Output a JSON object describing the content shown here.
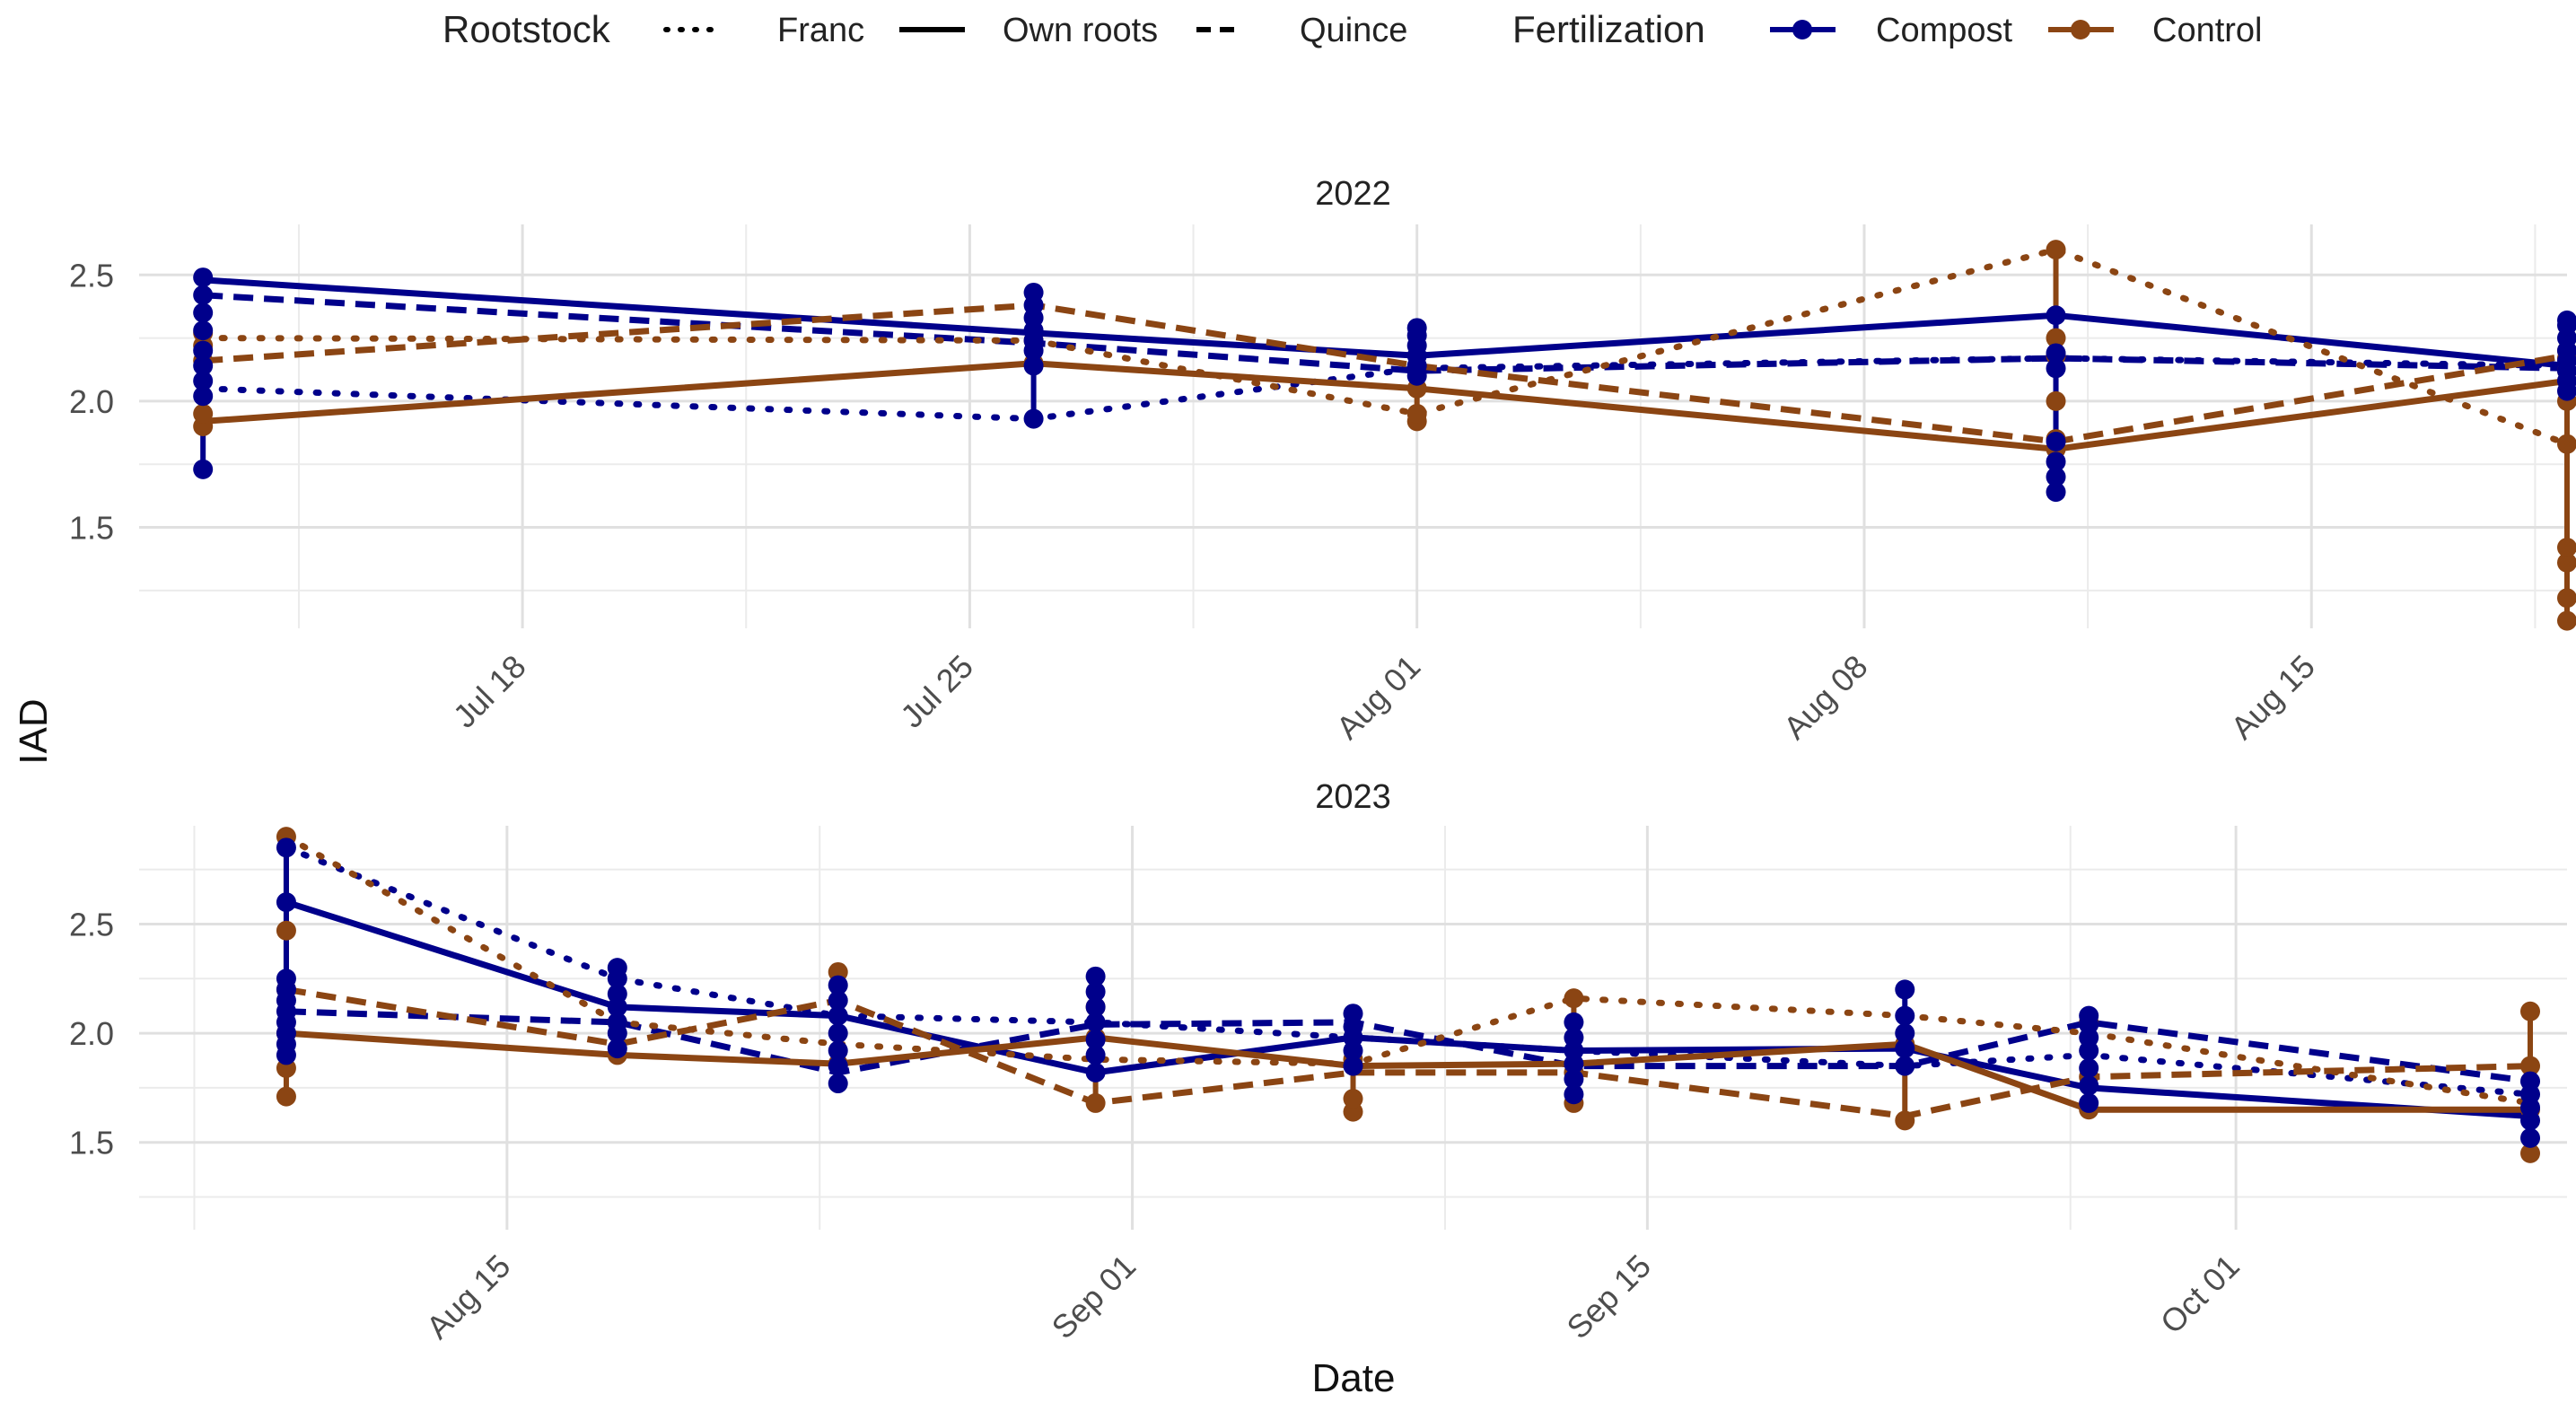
{
  "legend": {
    "rootstock_title": "Rootstock",
    "rootstock_items": [
      {
        "key": "franc",
        "label": "Franc",
        "dash": "dotted"
      },
      {
        "key": "own",
        "label": "Own roots",
        "dash": "solid"
      },
      {
        "key": "quince",
        "label": "Quince",
        "dash": "dashed"
      }
    ],
    "fertilization_title": "Fertilization",
    "fertilization_items": [
      {
        "key": "compost",
        "label": "Compost",
        "color": "#00008B"
      },
      {
        "key": "control",
        "label": "Control",
        "color": "#8B4513"
      }
    ]
  },
  "axis": {
    "xlabel": "Date",
    "ylabel": "IAD"
  },
  "chart_data": [
    {
      "type": "line",
      "title": "2022",
      "x_domain": [
        "2022-07-12",
        "2022-08-19"
      ],
      "ylim": [
        1.1,
        2.7
      ],
      "y_ticks": [
        1.5,
        2.0,
        2.5
      ],
      "y_tick_labels": [
        "1.5",
        "2.0",
        "2.5"
      ],
      "x_ticks": [
        "2022-07-18",
        "2022-07-25",
        "2022-08-01",
        "2022-08-08",
        "2022-08-15"
      ],
      "x_tick_labels": [
        "Jul 18",
        "Jul 25",
        "Aug 01",
        "Aug 08",
        "Aug 15"
      ],
      "dates": [
        "2022-07-13",
        "2022-07-26",
        "2022-08-01",
        "2022-08-11",
        "2022-08-19"
      ],
      "series": [
        {
          "name": "Compost / Franc",
          "fertilization": "compost",
          "rootstock": "franc",
          "values": [
            2.05,
            1.93,
            2.13,
            2.17,
            2.14
          ]
        },
        {
          "name": "Compost / Own roots",
          "fertilization": "compost",
          "rootstock": "own",
          "values": [
            2.48,
            2.27,
            2.18,
            2.34,
            2.14
          ]
        },
        {
          "name": "Compost / Quince",
          "fertilization": "compost",
          "rootstock": "quince",
          "values": [
            2.42,
            2.23,
            2.12,
            2.17,
            2.13
          ]
        },
        {
          "name": "Control / Franc",
          "fertilization": "control",
          "rootstock": "franc",
          "values": [
            2.25,
            2.24,
            1.95,
            2.6,
            1.83
          ]
        },
        {
          "name": "Control / Own roots",
          "fertilization": "control",
          "rootstock": "own",
          "values": [
            1.92,
            2.15,
            2.05,
            1.81,
            2.08
          ]
        },
        {
          "name": "Control / Quince",
          "fertilization": "control",
          "rootstock": "quince",
          "values": [
            2.16,
            2.38,
            2.14,
            1.84,
            2.18
          ]
        }
      ],
      "points": {
        "compost": [
          [
            0,
            [
              1.73,
              2.02,
              2.08,
              2.14,
              2.2,
              2.28,
              2.35,
              2.42,
              2.49
            ]
          ],
          [
            1,
            [
              1.93,
              2.14,
              2.2,
              2.24,
              2.28,
              2.33,
              2.38,
              2.43
            ]
          ],
          [
            2,
            [
              2.1,
              2.14,
              2.18,
              2.22,
              2.26,
              2.29
            ]
          ],
          [
            3,
            [
              1.64,
              1.7,
              1.76,
              1.84,
              2.13,
              2.19,
              2.34
            ]
          ],
          [
            4,
            [
              2.04,
              2.08,
              2.12,
              2.16,
              2.2,
              2.25,
              2.3,
              2.32
            ]
          ]
        ],
        "control": [
          [
            0,
            [
              1.9,
              1.95,
              2.16,
              2.22,
              2.27
            ]
          ],
          [
            1,
            [
              2.15,
              2.24
            ]
          ],
          [
            2,
            [
              1.92,
              1.95,
              2.05
            ]
          ],
          [
            3,
            [
              1.81,
              1.85,
              2.0,
              2.18,
              2.25,
              2.6
            ]
          ],
          [
            4,
            [
              1.13,
              1.22,
              1.36,
              1.42,
              1.83,
              2.0,
              2.08,
              2.12,
              2.17,
              2.2
            ]
          ]
        ]
      }
    },
    {
      "type": "line",
      "title": "2023",
      "x_domain": [
        "2023-08-05",
        "2023-10-10"
      ],
      "ylim": [
        1.1,
        2.95
      ],
      "y_ticks": [
        1.5,
        2.0,
        2.5
      ],
      "y_tick_labels": [
        "1.5",
        "2.0",
        "2.5"
      ],
      "x_ticks": [
        "2023-08-15",
        "2023-09-01",
        "2023-09-15",
        "2023-10-01"
      ],
      "x_tick_labels": [
        "Aug 15",
        "Sep 01",
        "Sep 15",
        "Oct 01"
      ],
      "dates": [
        "2023-08-09",
        "2023-08-18",
        "2023-08-24",
        "2023-08-31",
        "2023-09-07",
        "2023-09-13",
        "2023-09-22",
        "2023-09-27",
        "2023-10-09"
      ],
      "series": [
        {
          "name": "Compost / Franc",
          "fertilization": "compost",
          "rootstock": "franc",
          "values": [
            2.85,
            2.25,
            2.08,
            2.05,
            1.98,
            1.92,
            1.85,
            1.9,
            1.72
          ]
        },
        {
          "name": "Compost / Own roots",
          "fertilization": "compost",
          "rootstock": "own",
          "values": [
            2.6,
            2.12,
            2.08,
            1.82,
            1.98,
            1.92,
            1.93,
            1.75,
            1.62
          ]
        },
        {
          "name": "Compost / Quince",
          "fertilization": "compost",
          "rootstock": "quince",
          "values": [
            2.1,
            2.05,
            1.82,
            2.04,
            2.05,
            1.85,
            1.85,
            2.05,
            1.78
          ]
        },
        {
          "name": "Control / Franc",
          "fertilization": "control",
          "rootstock": "franc",
          "values": [
            2.9,
            2.05,
            1.95,
            1.88,
            1.86,
            2.16,
            2.08,
            2.0,
            1.68
          ]
        },
        {
          "name": "Control / Own roots",
          "fertilization": "control",
          "rootstock": "own",
          "values": [
            2.0,
            1.9,
            1.86,
            1.98,
            1.85,
            1.86,
            1.95,
            1.65,
            1.65
          ]
        },
        {
          "name": "Control / Quince",
          "fertilization": "control",
          "rootstock": "quince",
          "values": [
            2.2,
            1.95,
            2.15,
            1.68,
            1.82,
            1.82,
            1.62,
            1.8,
            1.85
          ]
        }
      ],
      "points": {
        "compost": [
          [
            0,
            [
              1.9,
              1.95,
              2.0,
              2.05,
              2.1,
              2.15,
              2.2,
              2.25,
              2.6,
              2.85
            ]
          ],
          [
            1,
            [
              1.93,
              2.0,
              2.05,
              2.12,
              2.18,
              2.25,
              2.3
            ]
          ],
          [
            2,
            [
              1.77,
              1.85,
              1.92,
              2.0,
              2.08,
              2.15,
              2.22
            ]
          ],
          [
            3,
            [
              1.82,
              1.9,
              1.97,
              2.05,
              2.12,
              2.19,
              2.26
            ]
          ],
          [
            4,
            [
              1.85,
              1.92,
              1.98,
              2.03,
              2.09
            ]
          ],
          [
            5,
            [
              1.72,
              1.79,
              1.86,
              1.92,
              1.98,
              2.05
            ]
          ],
          [
            6,
            [
              1.85,
              1.93,
              2.0,
              2.08,
              2.2
            ]
          ],
          [
            7,
            [
              1.68,
              1.76,
              1.84,
              1.92,
              1.98,
              2.04,
              2.08
            ]
          ],
          [
            8,
            [
              1.52,
              1.6,
              1.66,
              1.72,
              1.78
            ]
          ]
        ],
        "control": [
          [
            0,
            [
              1.71,
              1.84,
              2.0,
              2.2,
              2.47,
              2.9
            ]
          ],
          [
            1,
            [
              1.9,
              2.05
            ]
          ],
          [
            2,
            [
              1.86,
              2.28
            ]
          ],
          [
            3,
            [
              1.68,
              1.98,
              2.12
            ]
          ],
          [
            4,
            [
              1.64,
              1.7,
              1.88
            ]
          ],
          [
            5,
            [
              1.68,
              1.82,
              2.16
            ]
          ],
          [
            6,
            [
              1.6,
              1.95
            ]
          ],
          [
            7,
            [
              1.65,
              1.8,
              2.05
            ]
          ],
          [
            8,
            [
              1.45,
              1.65,
              1.85,
              2.1
            ]
          ]
        ]
      }
    }
  ]
}
